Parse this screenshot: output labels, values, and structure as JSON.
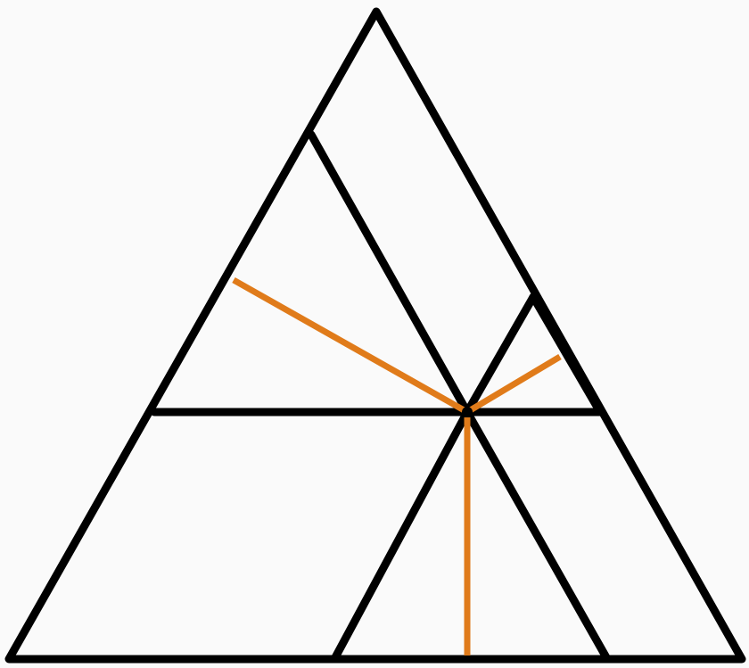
{
  "diagram": {
    "description_items": [
      "outer-equilateral-triangle",
      "horizontal-midline",
      "parallel-segments-forming-three-inner-triangles",
      "three-perpendicular-segments-from-interior-point"
    ],
    "colors": {
      "background": "#fafafa",
      "black": "#000000",
      "orange": "#e07b1a"
    }
  }
}
